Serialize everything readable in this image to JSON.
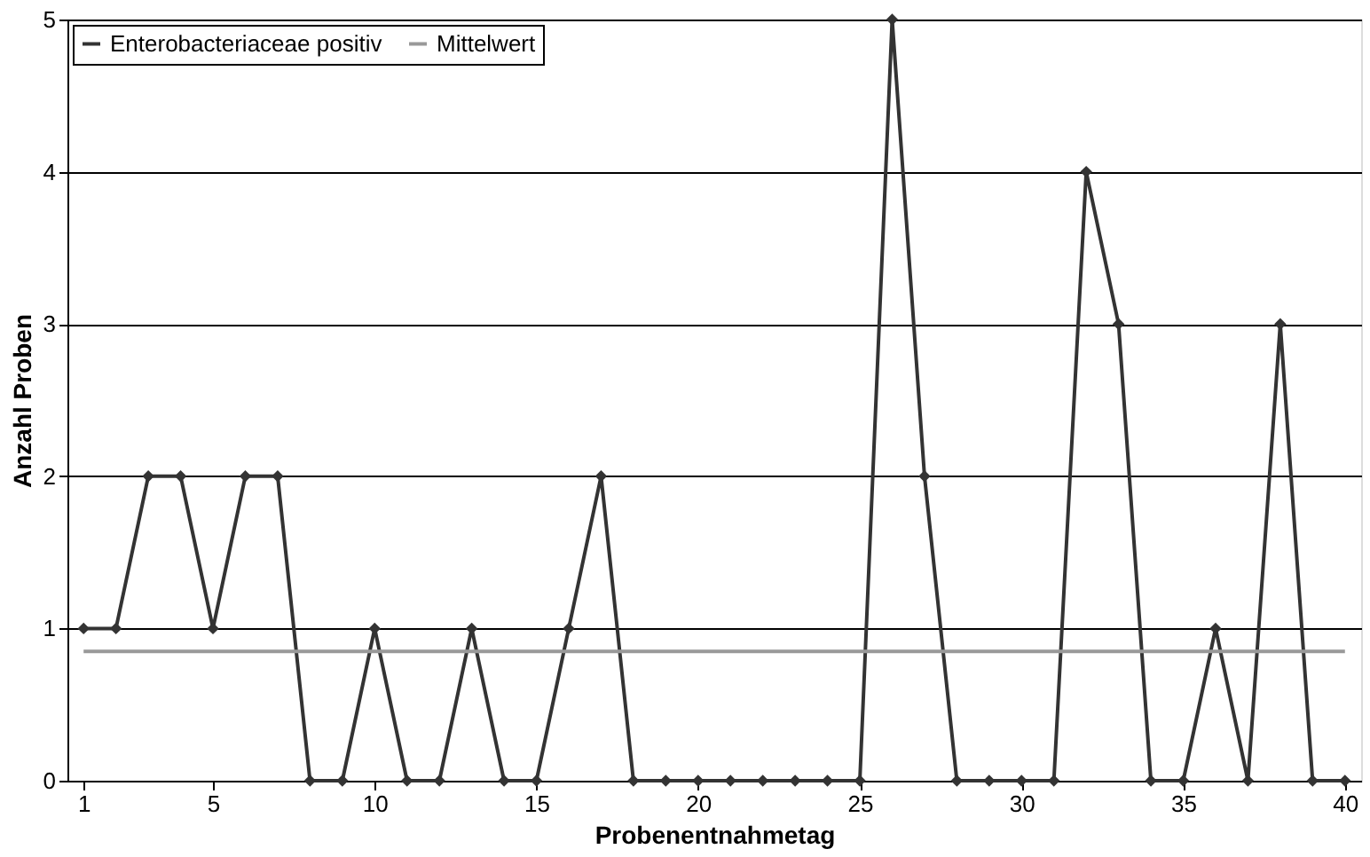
{
  "chart_data": {
    "type": "line",
    "xlabel": "Probenentnahmetag",
    "ylabel": "Anzahl Proben",
    "x": [
      1,
      2,
      3,
      4,
      5,
      6,
      7,
      8,
      9,
      10,
      11,
      12,
      13,
      14,
      15,
      16,
      17,
      18,
      19,
      20,
      21,
      22,
      23,
      24,
      25,
      26,
      27,
      28,
      29,
      30,
      31,
      32,
      33,
      34,
      35,
      36,
      37,
      38,
      39,
      40
    ],
    "series": [
      {
        "name": "Enterobacteriaceae positiv",
        "color": "#333333",
        "marker": "diamond",
        "values": [
          1,
          1,
          2,
          2,
          1,
          2,
          2,
          0,
          0,
          1,
          0,
          0,
          1,
          0,
          0,
          1,
          2,
          0,
          0,
          0,
          0,
          0,
          0,
          0,
          0,
          5,
          2,
          0,
          0,
          0,
          0,
          4,
          3,
          0,
          0,
          1,
          0,
          3,
          0,
          0
        ]
      },
      {
        "name": "Mittelwert",
        "color": "#999999",
        "marker": "none",
        "x": [
          1,
          40
        ],
        "values": [
          0.85,
          0.85
        ]
      }
    ],
    "xlim": [
      0.5,
      40.5
    ],
    "xticks": [
      1,
      5,
      10,
      15,
      20,
      25,
      30,
      35,
      40
    ],
    "ylim": [
      0,
      5
    ],
    "yticks": [
      0,
      1,
      2,
      3,
      4,
      5
    ],
    "grid": "y",
    "legend": "top left",
    "line_style": "solid"
  }
}
